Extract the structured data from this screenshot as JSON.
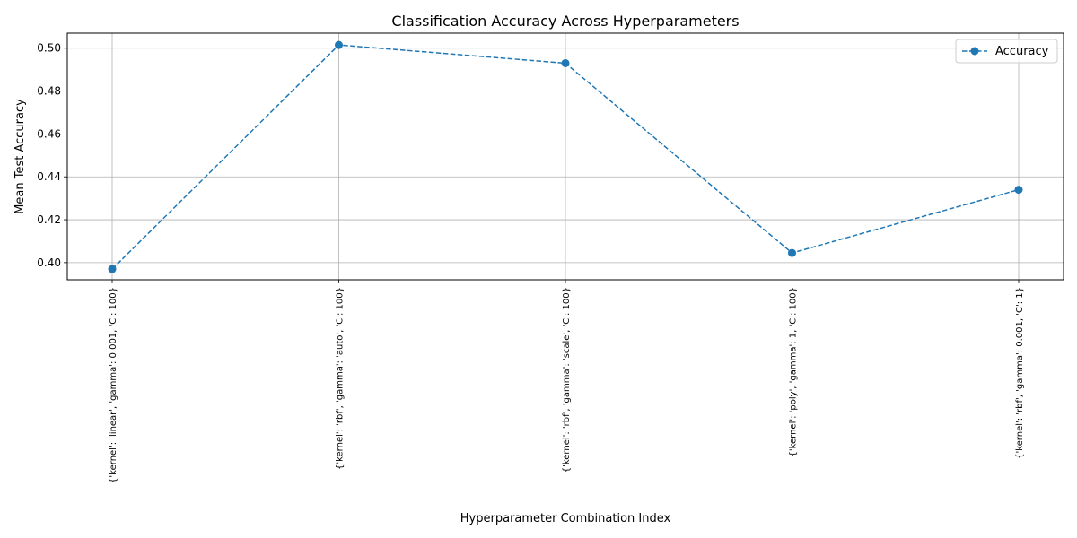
{
  "chart_data": {
    "type": "line",
    "title": "Classification Accuracy Across Hyperparameters",
    "xlabel": "Hyperparameter Combination Index",
    "ylabel": "Mean Test Accuracy",
    "categories": [
      "{'kernel': 'linear', 'gamma': 0.001, 'C': 100}",
      "{'kernel': 'rbf', 'gamma': 'auto', 'C': 100}",
      "{'kernel': 'rbf', 'gamma': 'scale', 'C': 100}",
      "{'kernel': 'poly', 'gamma': 1, 'C': 100}",
      "{'kernel': 'rbf', 'gamma': 0.001, 'C': 1}"
    ],
    "series": [
      {
        "name": "Accuracy",
        "values": [
          0.397,
          0.5015,
          0.493,
          0.4045,
          0.434
        ],
        "color": "#1f77b4",
        "line_style": "dashed",
        "marker": "circle"
      }
    ],
    "ylim": [
      0.392,
      0.507
    ],
    "yticks": [
      0.4,
      0.42,
      0.44,
      0.46,
      0.48,
      0.5
    ],
    "ytick_labels": [
      "0.40",
      "0.42",
      "0.44",
      "0.46",
      "0.48",
      "0.50"
    ],
    "grid": true,
    "legend_position": "top-right"
  }
}
